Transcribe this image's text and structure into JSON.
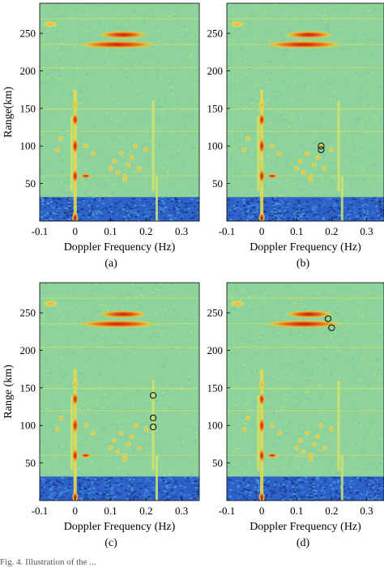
{
  "figure": {
    "panels": [
      {
        "label": "(a)"
      },
      {
        "label": "(b)"
      },
      {
        "label": "(c)"
      },
      {
        "label": "(d)"
      }
    ],
    "footer_text": "Fig. 4.  Illustration of the ..."
  },
  "colors": {
    "background_noise": "#8ed39b",
    "low_band": "#2d63c8",
    "hot": "#d52a18",
    "marker": "#222222"
  },
  "chart_data": [
    {
      "type": "heatmap",
      "title": "",
      "xlabel": "Doppler Frequency (Hz)",
      "ylabel": "Range(km)",
      "xlim": [
        -0.1,
        0.35
      ],
      "ylim": [
        0,
        290
      ],
      "x_ticks": [
        -0.1,
        0,
        0.1,
        0.2,
        0.3
      ],
      "x_tick_labels": [
        "-0.1",
        "0",
        "0.1",
        "0.2",
        "0.3"
      ],
      "y_ticks": [
        50,
        100,
        150,
        200,
        250
      ],
      "y_tick_labels": [
        "50",
        "100",
        "150",
        "200",
        "250"
      ],
      "markers": []
    },
    {
      "type": "heatmap",
      "title": "",
      "xlabel": "Doppler Frequency (Hz)",
      "ylabel": "",
      "xlim": [
        -0.1,
        0.35
      ],
      "ylim": [
        0,
        290
      ],
      "x_ticks": [
        -0.1,
        0,
        0.1,
        0.2,
        0.3
      ],
      "x_tick_labels": [
        "-0.1",
        "0",
        "0.1",
        "0.2",
        "0.3"
      ],
      "y_ticks": [
        50,
        100,
        150,
        200,
        250
      ],
      "y_tick_labels": [
        "50",
        "100",
        "150",
        "200",
        "250"
      ],
      "markers": [
        {
          "x": 0.17,
          "y": 100
        },
        {
          "x": 0.17,
          "y": 95
        }
      ]
    },
    {
      "type": "heatmap",
      "title": "",
      "xlabel": "Doppler Frequency (Hz)",
      "ylabel": "Range (km)",
      "xlim": [
        -0.1,
        0.35
      ],
      "ylim": [
        0,
        290
      ],
      "x_ticks": [
        -0.1,
        0,
        0.1,
        0.2,
        0.3
      ],
      "x_tick_labels": [
        "-0.1",
        "0",
        "0.1",
        "0.2",
        "0.3"
      ],
      "y_ticks": [
        50,
        100,
        150,
        200,
        250
      ],
      "y_tick_labels": [
        "50",
        "100",
        "150",
        "200",
        "250"
      ],
      "markers": [
        {
          "x": 0.22,
          "y": 140
        },
        {
          "x": 0.22,
          "y": 110
        },
        {
          "x": 0.22,
          "y": 98
        }
      ]
    },
    {
      "type": "heatmap",
      "title": "",
      "xlabel": "Doppler Frequency (Hz)",
      "ylabel": "",
      "xlim": [
        -0.1,
        0.35
      ],
      "ylim": [
        0,
        290
      ],
      "x_ticks": [
        -0.1,
        0,
        0.1,
        0.2,
        0.3
      ],
      "x_tick_labels": [
        "-0.1",
        "0",
        "0.1",
        "0.2",
        "0.3"
      ],
      "y_ticks": [
        50,
        100,
        150,
        200,
        250
      ],
      "y_tick_labels": [
        "50",
        "100",
        "150",
        "200",
        "250"
      ],
      "markers": [
        {
          "x": 0.19,
          "y": 242
        },
        {
          "x": 0.2,
          "y": 230
        }
      ]
    }
  ]
}
